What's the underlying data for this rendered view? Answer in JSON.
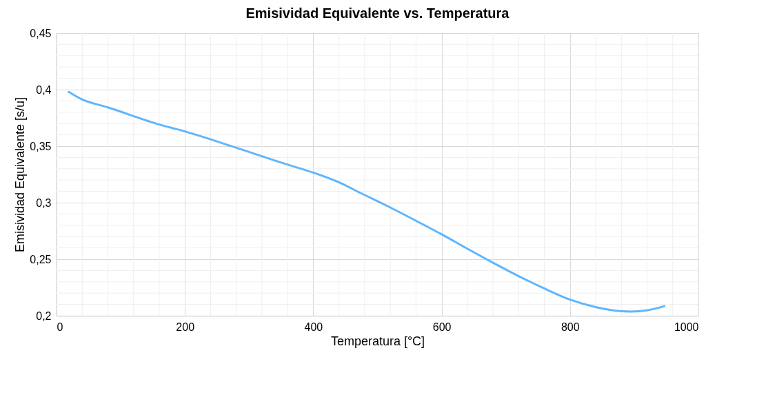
{
  "chart_data": {
    "type": "line",
    "title": "Emisividad Equivalente vs. Temperatura",
    "xlabel": "Temperatura [°C]",
    "ylabel": "Emisividad Equivalente [s/u]",
    "x": [
      19,
      39,
      80,
      161,
      200,
      281,
      361,
      401,
      440,
      472,
      512,
      561,
      600,
      640,
      679,
      720,
      761,
      800,
      841,
      880,
      894,
      921,
      947
    ],
    "series": [
      {
        "color": "#5eb6ff",
        "values": [
          0.398,
          0.3915,
          0.3843,
          0.369,
          0.363,
          0.3484,
          0.3335,
          0.3264,
          0.318,
          0.309,
          0.298,
          0.2837,
          0.272,
          0.2593,
          0.2472,
          0.235,
          0.2238,
          0.2142,
          0.2075,
          0.204,
          0.2037,
          0.2049,
          0.2085
        ]
      }
    ],
    "xlim": [
      0,
      1000
    ],
    "xticks": [
      0,
      200,
      400,
      600,
      800,
      1000
    ],
    "ylim": [
      0.2,
      0.45
    ],
    "yticks": [
      {
        "value": 0.2,
        "label": "0,2"
      },
      {
        "value": 0.25,
        "label": "0,25"
      },
      {
        "value": 0.3,
        "label": "0,3"
      },
      {
        "value": 0.35,
        "label": "0,35"
      },
      {
        "value": 0.4,
        "label": "0,4"
      },
      {
        "value": 0.45,
        "label": "0,45"
      }
    ],
    "grid": true,
    "marker": "none",
    "line_style": "solid"
  }
}
